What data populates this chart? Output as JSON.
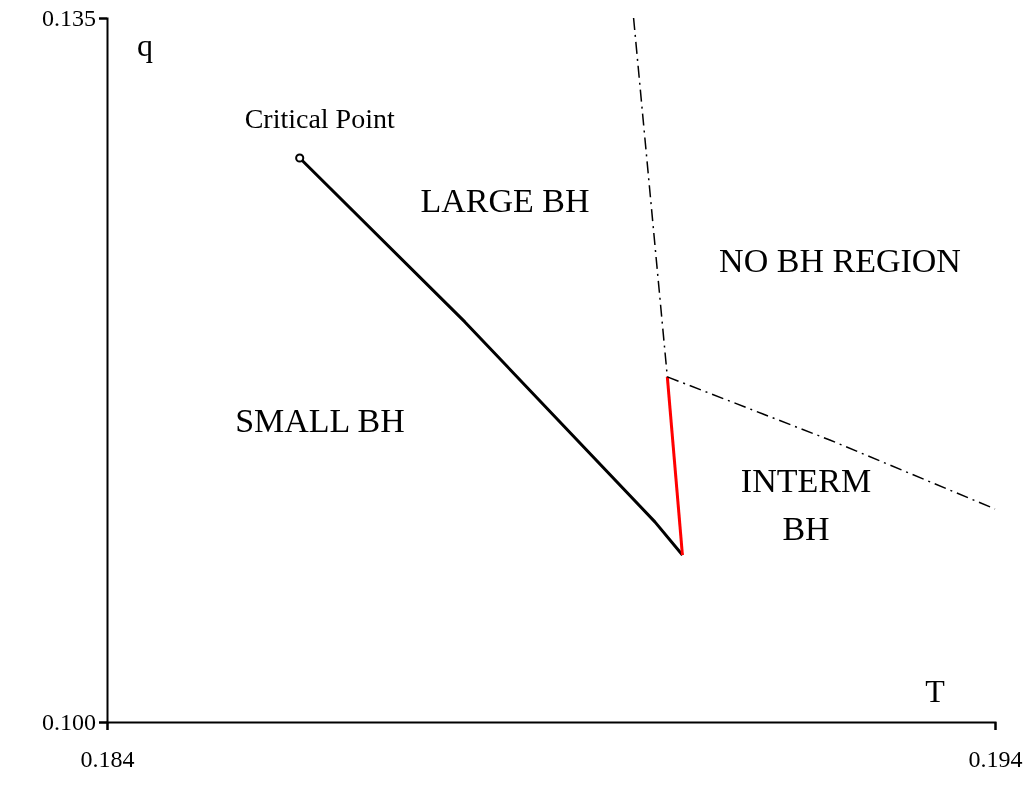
{
  "chart_data": {
    "type": "line",
    "xlabel": "T",
    "ylabel": "q",
    "xlim": [
      0.184,
      0.194
    ],
    "ylim": [
      0.1,
      0.135
    ],
    "xticks": [
      {
        "value": 0.184,
        "label": "0.184"
      },
      {
        "value": 0.194,
        "label": "0.194"
      }
    ],
    "yticks": [
      {
        "value": 0.1,
        "label": "0.100"
      },
      {
        "value": 0.135,
        "label": "0.135"
      }
    ],
    "grid": false,
    "series": [
      {
        "color": "#000000",
        "x": [
          0.18617,
          0.18803,
          0.19017,
          0.19048
        ],
        "values": [
          0.12804,
          0.11989,
          0.10995,
          0.1083
        ],
        "marker": "none",
        "line_style": "solid"
      },
      {
        "color": "#ff0000",
        "x": [
          0.19048,
          0.19031
        ],
        "values": [
          0.1083,
          0.11716
        ],
        "marker": "none",
        "line_style": "solid"
      },
      {
        "type": "line",
        "color": "#000000",
        "x": [
          0.18993,
          0.19031
        ],
        "values": [
          0.135,
          0.11716
        ],
        "marker": "none",
        "line_style": "dashdot"
      },
      {
        "type": "line",
        "color": "#000000",
        "x": [
          0.19031,
          0.19214,
          0.194
        ],
        "values": [
          0.11716,
          0.11402,
          0.11059
        ],
        "marker": "none",
        "line_style": "dashdot"
      },
      {
        "type": "scatter",
        "color": "#000000",
        "x": [
          0.18617
        ],
        "values": [
          0.12804
        ],
        "marker": "circle"
      }
    ],
    "annotations": [
      {
        "text": "Critical Point",
        "x": 0.18617,
        "y": 0.12804
      },
      "LARGE BH",
      "NO BH REGION",
      "SMALL BH",
      "INTERM",
      "BH"
    ]
  }
}
